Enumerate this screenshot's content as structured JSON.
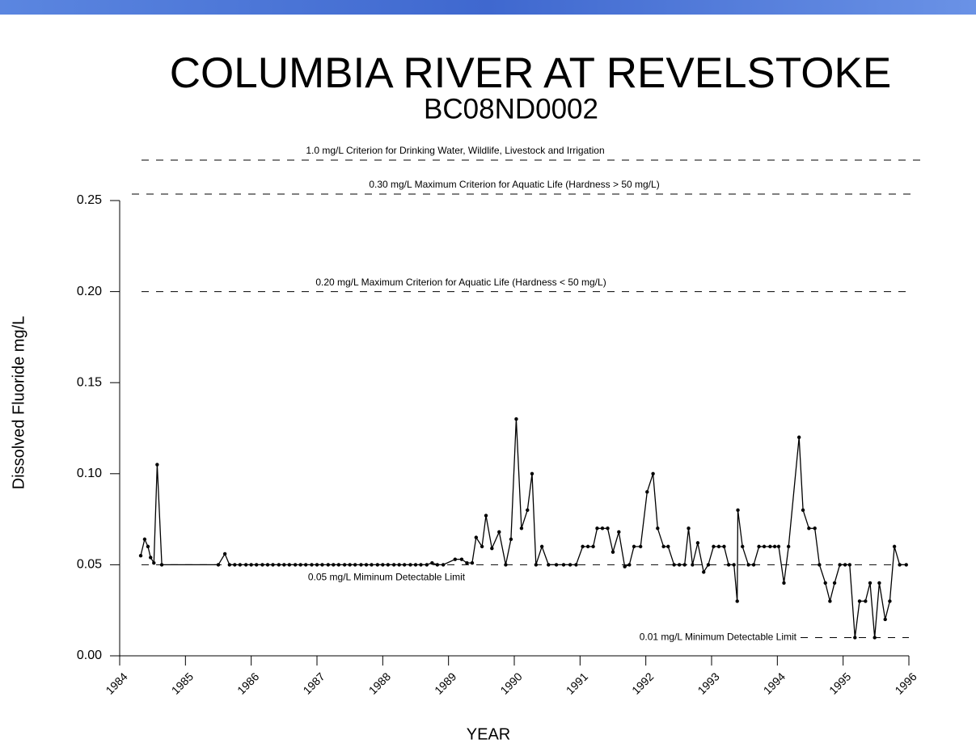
{
  "chart_data": {
    "type": "line",
    "title": "COLUMBIA RIVER AT REVELSTOKE",
    "subtitle": "BC08ND0002",
    "x_label": "YEAR",
    "y_label": "Dissolved Fluoride mg/L",
    "xlim": [
      1984,
      1996
    ],
    "xticks": [
      1984,
      1985,
      1986,
      1987,
      1988,
      1989,
      1990,
      1991,
      1992,
      1993,
      1994,
      1995,
      1996
    ],
    "ylim": [
      0,
      0.25
    ],
    "yticks": [
      {
        "value": 0,
        "label": "0.00"
      },
      0.05,
      {
        "value": 0.1,
        "label": "0.10"
      },
      0.15,
      {
        "value": 0.2,
        "label": "0.20"
      },
      0.25
    ],
    "annotations": [
      "1.0 mg/L Criterion for Drinking Water, Wildlife, Livestock and Irrigation",
      "0.30 mg/L  Maximum Criterion for Aquatic Life (Hardness > 50 mg/L)"
    ],
    "reference_lines": [
      {
        "value": 0.2,
        "label": "0.20 mg/L Maximum Criterion  for Aquatic Life (Hardness < 50 mg/L)"
      },
      {
        "value": 0.05,
        "label": "0.05 mg/L  Miminum Detectable Limit"
      },
      {
        "value": 0.01,
        "label": "0.01 mg/L  Minimum Detectable Limit"
      }
    ],
    "color": "#000000",
    "x": [
      1984.32,
      1984.38,
      1984.43,
      1984.47,
      1984.52,
      1984.57,
      1984.64,
      1985.5,
      1985.6,
      1985.67,
      1985.75,
      1985.83,
      1985.92,
      1986.0,
      1986.08,
      1986.17,
      1986.25,
      1986.33,
      1986.42,
      1986.5,
      1986.58,
      1986.67,
      1986.75,
      1986.83,
      1986.92,
      1987.0,
      1987.08,
      1987.17,
      1987.25,
      1987.33,
      1987.42,
      1987.5,
      1987.58,
      1987.67,
      1987.75,
      1987.83,
      1987.92,
      1988.0,
      1988.08,
      1988.17,
      1988.25,
      1988.33,
      1988.42,
      1988.5,
      1988.58,
      1988.67,
      1988.75,
      1988.83,
      1988.92,
      1989.1,
      1989.2,
      1989.28,
      1989.36,
      1989.42,
      1989.51,
      1989.57,
      1989.66,
      1989.77,
      1989.87,
      1989.95,
      1990.03,
      1990.11,
      1990.2,
      1990.27,
      1990.33,
      1990.42,
      1990.52,
      1990.64,
      1990.75,
      1990.85,
      1990.94,
      1991.04,
      1991.12,
      1991.2,
      1991.26,
      1991.34,
      1991.42,
      1991.5,
      1991.59,
      1991.68,
      1991.75,
      1991.82,
      1991.92,
      1992.02,
      1992.11,
      1992.18,
      1992.27,
      1992.34,
      1992.43,
      1992.51,
      1992.59,
      1992.65,
      1992.71,
      1992.79,
      1992.88,
      1992.95,
      1993.03,
      1993.11,
      1993.19,
      1993.26,
      1993.34,
      1993.39,
      1993.4,
      1993.47,
      1993.56,
      1993.64,
      1993.72,
      1993.8,
      1993.89,
      1993.96,
      1994.02,
      1994.1,
      1994.17,
      1994.33,
      1994.39,
      1994.48,
      1994.57,
      1994.64,
      1994.73,
      1994.8,
      1994.87,
      1994.95,
      1995.03,
      1995.1,
      1995.18,
      1995.25,
      1995.34,
      1995.41,
      1995.48,
      1995.55,
      1995.64,
      1995.71,
      1995.78,
      1995.86,
      1995.96
    ],
    "values": [
      0.055,
      0.064,
      0.06,
      0.054,
      0.051,
      0.105,
      0.05,
      0.05,
      0.056,
      0.05,
      0.05,
      0.05,
      0.05,
      0.05,
      0.05,
      0.05,
      0.05,
      0.05,
      0.05,
      0.05,
      0.05,
      0.05,
      0.05,
      0.05,
      0.05,
      0.05,
      0.05,
      0.05,
      0.05,
      0.05,
      0.05,
      0.05,
      0.05,
      0.05,
      0.05,
      0.05,
      0.05,
      0.05,
      0.05,
      0.05,
      0.05,
      0.05,
      0.05,
      0.05,
      0.05,
      0.05,
      0.051,
      0.05,
      0.05,
      0.053,
      0.053,
      0.051,
      0.051,
      0.065,
      0.06,
      0.077,
      0.059,
      0.068,
      0.05,
      0.064,
      0.13,
      0.07,
      0.08,
      0.1,
      0.05,
      0.06,
      0.05,
      0.05,
      0.05,
      0.05,
      0.05,
      0.06,
      0.06,
      0.06,
      0.07,
      0.07,
      0.07,
      0.057,
      0.068,
      0.049,
      0.05,
      0.06,
      0.06,
      0.09,
      0.1,
      0.07,
      0.06,
      0.06,
      0.05,
      0.05,
      0.05,
      0.07,
      0.05,
      0.062,
      0.046,
      0.05,
      0.06,
      0.06,
      0.06,
      0.05,
      0.05,
      0.03,
      0.08,
      0.06,
      0.05,
      0.05,
      0.06,
      0.06,
      0.06,
      0.06,
      0.06,
      0.04,
      0.06,
      0.12,
      0.08,
      0.07,
      0.07,
      0.05,
      0.04,
      0.03,
      0.04,
      0.05,
      0.05,
      0.05,
      0.01,
      0.03,
      0.03,
      0.04,
      0.01,
      0.04,
      0.02,
      0.03,
      0.06,
      0.05,
      0.05
    ]
  }
}
